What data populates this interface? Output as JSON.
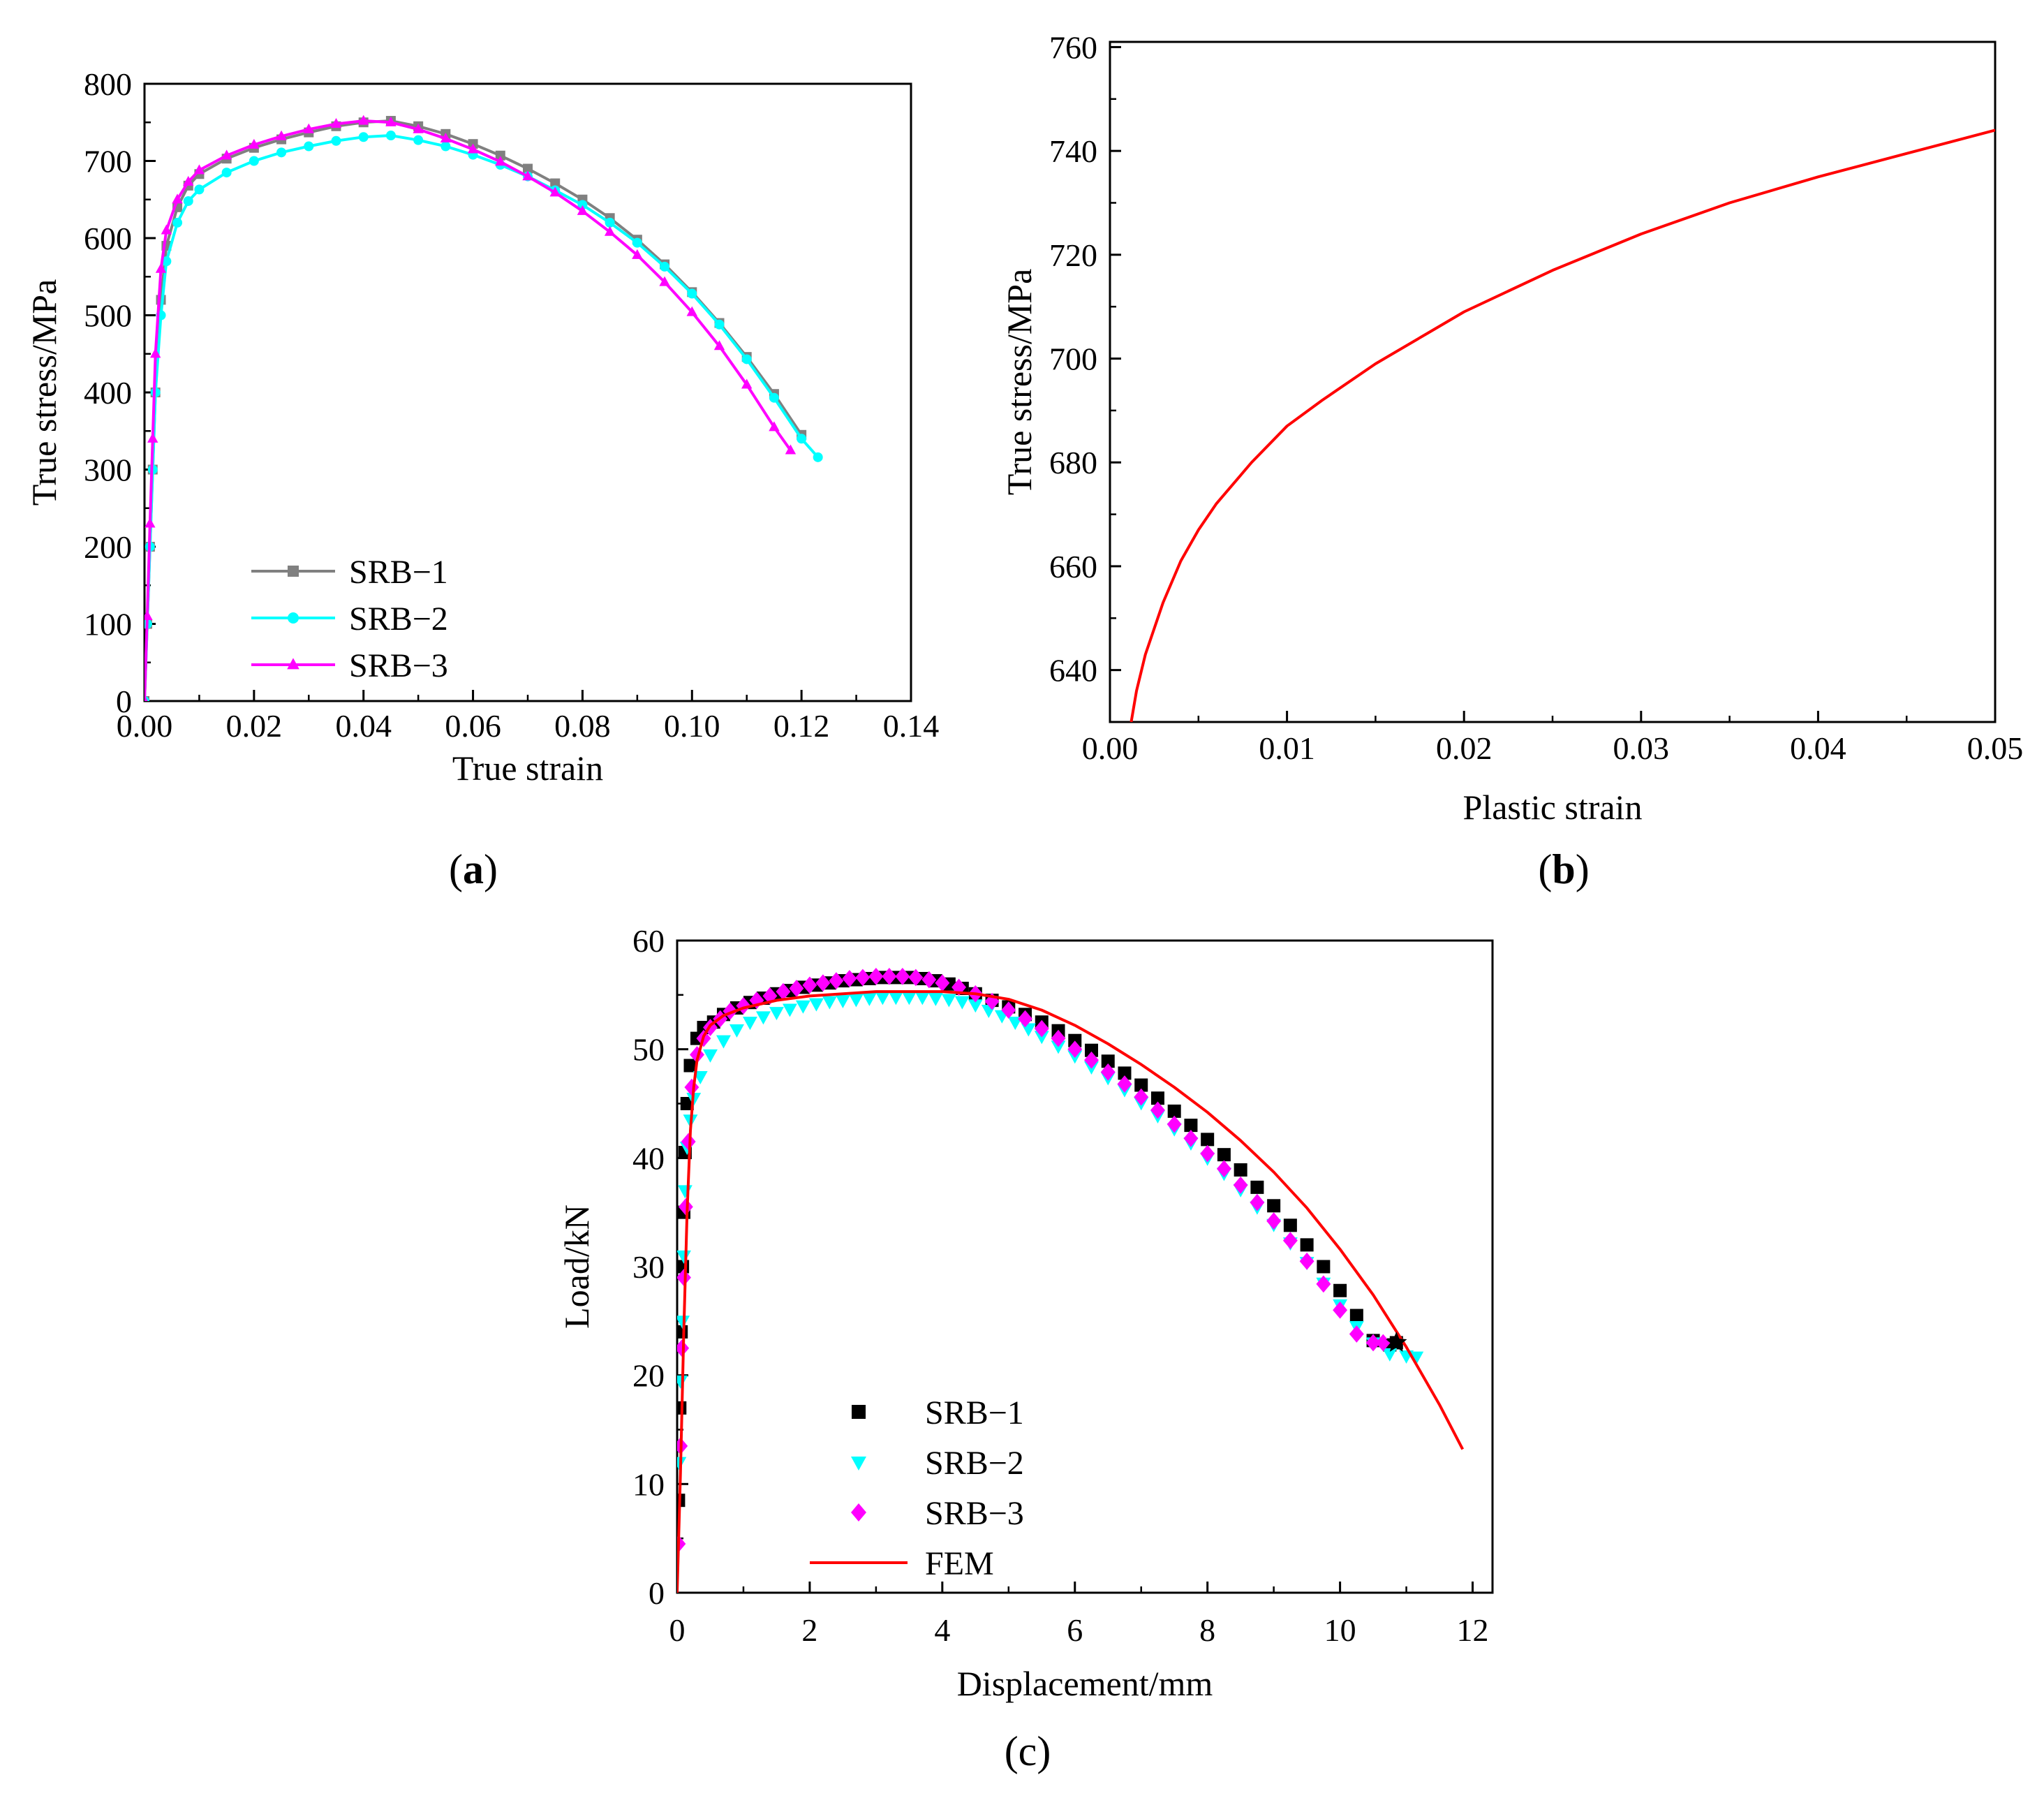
{
  "chart_data": [
    {
      "id": "a",
      "type": "line",
      "panel_label": "a",
      "xlabel": "True strain",
      "ylabel": "True stress/MPa",
      "xlim": [
        0,
        0.14
      ],
      "ylim": [
        0,
        800
      ],
      "xticks": [
        "0.00",
        "0.02",
        "0.04",
        "0.06",
        "0.08",
        "0.10",
        "0.12",
        "0.14"
      ],
      "yticks": [
        "0",
        "100",
        "200",
        "300",
        "400",
        "500",
        "600",
        "700",
        "800"
      ],
      "legend_position": "lower-left",
      "series": [
        {
          "name": "SRB−1",
          "color": "#808080",
          "marker": "square",
          "x": [
            0,
            0.0005,
            0.001,
            0.0015,
            0.002,
            0.003,
            0.004,
            0.006,
            0.008,
            0.01,
            0.015,
            0.02,
            0.025,
            0.03,
            0.035,
            0.04,
            0.045,
            0.05,
            0.055,
            0.06,
            0.065,
            0.07,
            0.075,
            0.08,
            0.085,
            0.09,
            0.095,
            0.1,
            0.105,
            0.11,
            0.115,
            0.12
          ],
          "y": [
            0,
            100,
            200,
            300,
            400,
            520,
            590,
            640,
            668,
            683,
            703,
            717,
            728,
            737,
            745,
            750,
            752,
            745,
            735,
            722,
            707,
            690,
            671,
            650,
            626,
            598,
            566,
            530,
            490,
            446,
            398,
            345
          ]
        },
        {
          "name": "SRB−2",
          "color": "#00FFFF",
          "marker": "circle",
          "x": [
            0,
            0.0005,
            0.001,
            0.0015,
            0.002,
            0.003,
            0.004,
            0.006,
            0.008,
            0.01,
            0.015,
            0.02,
            0.025,
            0.03,
            0.035,
            0.04,
            0.045,
            0.05,
            0.055,
            0.06,
            0.065,
            0.07,
            0.075,
            0.08,
            0.085,
            0.09,
            0.095,
            0.1,
            0.105,
            0.11,
            0.115,
            0.12,
            0.123
          ],
          "y": [
            0,
            100,
            200,
            300,
            400,
            500,
            570,
            620,
            648,
            663,
            685,
            700,
            711,
            719,
            726,
            731,
            733,
            727,
            719,
            708,
            695,
            680,
            662,
            643,
            620,
            594,
            563,
            528,
            488,
            443,
            393,
            340,
            316
          ]
        },
        {
          "name": "SRB−3",
          "color": "#FF00FF",
          "marker": "triangle",
          "x": [
            0,
            0.0005,
            0.001,
            0.0015,
            0.002,
            0.003,
            0.004,
            0.006,
            0.008,
            0.01,
            0.015,
            0.02,
            0.025,
            0.03,
            0.035,
            0.04,
            0.045,
            0.05,
            0.055,
            0.06,
            0.065,
            0.07,
            0.075,
            0.08,
            0.085,
            0.09,
            0.095,
            0.1,
            0.105,
            0.11,
            0.115,
            0.118
          ],
          "y": [
            0,
            110,
            230,
            340,
            450,
            560,
            610,
            650,
            673,
            688,
            707,
            721,
            732,
            741,
            748,
            752,
            750,
            741,
            729,
            715,
            699,
            680,
            659,
            635,
            608,
            578,
            543,
            504,
            460,
            410,
            355,
            325
          ]
        }
      ]
    },
    {
      "id": "b",
      "type": "line",
      "panel_label": "b",
      "xlabel": "Plastic strain",
      "ylabel": "True stress/MPa",
      "xlim": [
        0,
        0.05
      ],
      "ylim": [
        630,
        761
      ],
      "xticks": [
        "0.00",
        "0.01",
        "0.02",
        "0.03",
        "0.04",
        "0.05"
      ],
      "yticks": [
        "640",
        "660",
        "680",
        "700",
        "720",
        "740",
        "760"
      ],
      "series": [
        {
          "name": "",
          "color": "#FF0000",
          "x": [
            0.0012,
            0.0015,
            0.002,
            0.003,
            0.004,
            0.005,
            0.006,
            0.008,
            0.01,
            0.012,
            0.015,
            0.018,
            0.02,
            0.025,
            0.03,
            0.035,
            0.04,
            0.045,
            0.05
          ],
          "y": [
            630,
            636,
            643,
            653,
            661,
            667,
            672,
            680,
            687,
            692,
            699,
            705,
            709,
            717,
            724,
            730,
            735,
            739.5,
            744
          ]
        }
      ]
    },
    {
      "id": "c",
      "type": "scatter",
      "panel_label": "c",
      "xlabel": "Displacement/mm",
      "ylabel": "Load/kN",
      "xlim": [
        0,
        12.3
      ],
      "ylim": [
        0,
        60
      ],
      "xticks": [
        "0",
        "2",
        "4",
        "6",
        "8",
        "10",
        "12"
      ],
      "yticks": [
        "0",
        "10",
        "20",
        "30",
        "40",
        "50",
        "60"
      ],
      "legend_position": "lower-left",
      "series": [
        {
          "name": "SRB−1",
          "color": "#000000",
          "marker": "square",
          "x": [
            0.02,
            0.04,
            0.06,
            0.08,
            0.1,
            0.12,
            0.15,
            0.2,
            0.3,
            0.4,
            0.55,
            0.7,
            0.9,
            1.1,
            1.3,
            1.5,
            1.7,
            1.9,
            2.1,
            2.3,
            2.5,
            2.7,
            2.9,
            3.1,
            3.3,
            3.5,
            3.7,
            3.9,
            4.1,
            4.3,
            4.5,
            4.75,
            5.0,
            5.25,
            5.5,
            5.75,
            6.0,
            6.25,
            6.5,
            6.75,
            7.0,
            7.25,
            7.5,
            7.75,
            8.0,
            8.25,
            8.5,
            8.75,
            9.0,
            9.25,
            9.5,
            9.75,
            10.0,
            10.25,
            10.5,
            10.75,
            10.85
          ],
          "y": [
            8.5,
            17,
            24,
            30,
            35,
            40.5,
            45,
            48.5,
            51,
            52,
            52.5,
            53.2,
            53.8,
            54.3,
            54.7,
            55.1,
            55.4,
            55.7,
            55.9,
            56.1,
            56.3,
            56.4,
            56.5,
            56.6,
            56.6,
            56.6,
            56.5,
            56.3,
            56,
            55.6,
            55.1,
            54.5,
            53.9,
            53.2,
            52.5,
            51.7,
            50.8,
            49.9,
            48.9,
            47.8,
            46.7,
            45.5,
            44.3,
            43,
            41.7,
            40.3,
            38.9,
            37.3,
            35.6,
            33.8,
            32,
            30,
            27.8,
            25.5,
            23.2,
            22.8,
            23
          ]
        },
        {
          "name": "SRB−2",
          "color": "#00FFFF",
          "marker": "triangle-down",
          "x": [
            0.03,
            0.05,
            0.08,
            0.1,
            0.12,
            0.15,
            0.2,
            0.25,
            0.35,
            0.5,
            0.7,
            0.9,
            1.1,
            1.3,
            1.5,
            1.7,
            1.9,
            2.1,
            2.3,
            2.5,
            2.7,
            2.9,
            3.1,
            3.3,
            3.5,
            3.7,
            3.9,
            4.1,
            4.3,
            4.5,
            4.7,
            4.9,
            5.1,
            5.3,
            5.5,
            5.75,
            6.0,
            6.25,
            6.5,
            6.75,
            7.0,
            7.25,
            7.5,
            7.75,
            8.0,
            8.25,
            8.5,
            8.75,
            9.0,
            9.25,
            9.5,
            9.75,
            10.0,
            10.25,
            10.5,
            10.75,
            11.0,
            11.15
          ],
          "y": [
            12,
            19.5,
            25,
            31,
            37,
            41,
            43.5,
            45.5,
            47.5,
            49.5,
            50.8,
            51.8,
            52.5,
            53,
            53.4,
            53.7,
            54,
            54.2,
            54.4,
            54.5,
            54.6,
            54.7,
            54.8,
            54.8,
            54.8,
            54.8,
            54.7,
            54.6,
            54.4,
            54.1,
            53.6,
            53.1,
            52.5,
            51.9,
            51.2,
            50.3,
            49.4,
            48.4,
            47.4,
            46.3,
            45.1,
            43.9,
            42.7,
            41.4,
            40,
            38.6,
            37.1,
            35.5,
            33.9,
            32.2,
            30.4,
            28.5,
            26.5,
            24.5,
            23,
            22,
            21.8,
            21.7
          ]
        },
        {
          "name": "SRB−3",
          "color": "#FF00FF",
          "marker": "diamond",
          "x": [
            0.02,
            0.05,
            0.07,
            0.1,
            0.13,
            0.17,
            0.22,
            0.3,
            0.4,
            0.5,
            0.65,
            0.8,
            1.0,
            1.2,
            1.4,
            1.6,
            1.8,
            2.0,
            2.2,
            2.4,
            2.6,
            2.8,
            3.0,
            3.2,
            3.4,
            3.6,
            3.8,
            4.0,
            4.25,
            4.5,
            4.75,
            5.0,
            5.25,
            5.5,
            5.75,
            6.0,
            6.25,
            6.5,
            6.75,
            7.0,
            7.25,
            7.5,
            7.75,
            8.0,
            8.25,
            8.5,
            8.75,
            9.0,
            9.25,
            9.5,
            9.75,
            10.0,
            10.25,
            10.5,
            10.65
          ],
          "y": [
            4.5,
            13.5,
            22.5,
            29,
            35.5,
            41.5,
            46.5,
            49.5,
            51,
            52,
            52.8,
            53.5,
            54,
            54.5,
            54.9,
            55.3,
            55.6,
            55.9,
            56.1,
            56.3,
            56.5,
            56.6,
            56.7,
            56.7,
            56.7,
            56.6,
            56.4,
            56.1,
            55.7,
            55.1,
            54.4,
            53.6,
            52.8,
            51.9,
            51,
            50,
            49,
            47.9,
            46.8,
            45.6,
            44.4,
            43.1,
            41.8,
            40.4,
            39,
            37.5,
            35.9,
            34.2,
            32.4,
            30.5,
            28.4,
            26,
            23.8,
            23,
            23
          ]
        },
        {
          "name": "FEM",
          "color": "#FF0000",
          "marker": "line",
          "x": [
            0,
            0.05,
            0.1,
            0.15,
            0.2,
            0.25,
            0.3,
            0.4,
            0.5,
            0.7,
            1.0,
            1.5,
            2.0,
            2.5,
            3.0,
            3.5,
            4.0,
            4.5,
            5.0,
            5.5,
            6.0,
            6.5,
            7.0,
            7.5,
            8.0,
            8.5,
            9.0,
            9.5,
            10.0,
            10.5,
            11.0,
            11.5,
            11.85
          ],
          "y": [
            0,
            11,
            24,
            35,
            42.5,
            46.5,
            49,
            51.2,
            52.2,
            53.1,
            53.8,
            54.5,
            54.9,
            55.1,
            55.3,
            55.3,
            55.3,
            55.1,
            54.6,
            53.6,
            52.2,
            50.5,
            48.6,
            46.5,
            44.2,
            41.6,
            38.7,
            35.4,
            31.6,
            27.4,
            22.6,
            17.3,
            13.2
          ]
        }
      ],
      "annotation": {
        "type": "star",
        "x": 10.85,
        "y": 23,
        "color": "#000000"
      }
    }
  ]
}
